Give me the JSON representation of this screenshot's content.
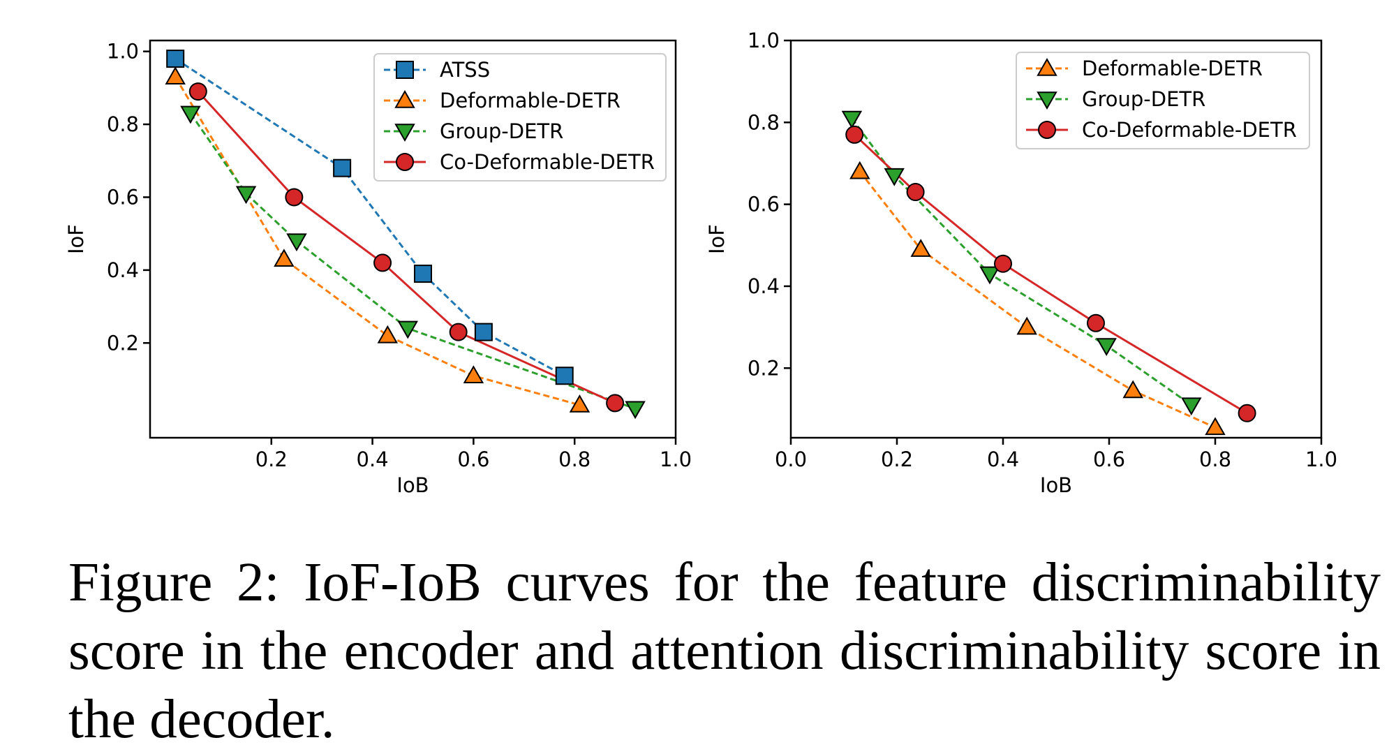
{
  "colors": {
    "ATSS": "#1f77b4",
    "Deformable-DETR": "#ff7f0e",
    "Group-DETR": "#2ca02c",
    "Co-Deformable-DETR": "#d62728"
  },
  "chart_data": [
    {
      "type": "line",
      "xlabel": "IoB",
      "ylabel": "IoF",
      "xlim": [
        -0.04,
        1.0
      ],
      "ylim": [
        -0.06,
        1.03
      ],
      "xticks": [
        "0.2",
        "0.4",
        "0.6",
        "0.8",
        "1.0"
      ],
      "yticks": [
        "0.2",
        "0.4",
        "0.6",
        "0.8",
        "1.0"
      ],
      "grid": false,
      "legend": "top-right",
      "series": [
        {
          "name": "ATSS",
          "marker": "square",
          "linestyle": "dashed",
          "x": [
            0.01,
            0.34,
            0.5,
            0.62,
            0.78
          ],
          "y": [
            0.98,
            0.68,
            0.39,
            0.23,
            0.11
          ]
        },
        {
          "name": "Deformable-DETR",
          "marker": "triangle-up",
          "linestyle": "dashed",
          "x": [
            0.01,
            0.225,
            0.43,
            0.6,
            0.81
          ],
          "y": [
            0.93,
            0.43,
            0.22,
            0.11,
            0.03
          ]
        },
        {
          "name": "Group-DETR",
          "marker": "triangle-down",
          "linestyle": "dashed",
          "x": [
            0.04,
            0.15,
            0.25,
            0.47,
            0.92
          ],
          "y": [
            0.83,
            0.61,
            0.48,
            0.24,
            0.02
          ]
        },
        {
          "name": "Co-Deformable-DETR",
          "marker": "circle",
          "linestyle": "solid",
          "x": [
            0.055,
            0.245,
            0.42,
            0.57,
            0.88
          ],
          "y": [
            0.89,
            0.6,
            0.42,
            0.23,
            0.035
          ]
        }
      ]
    },
    {
      "type": "line",
      "xlabel": "IoB",
      "ylabel": "IoF",
      "xlim": [
        0.0,
        1.0
      ],
      "ylim": [
        0.03,
        1.0
      ],
      "xticks": [
        "0.0",
        "0.2",
        "0.4",
        "0.6",
        "0.8",
        "1.0"
      ],
      "yticks": [
        "0.2",
        "0.4",
        "0.6",
        "0.8",
        "1.0"
      ],
      "grid": false,
      "legend": "top-right",
      "series": [
        {
          "name": "Deformable-DETR",
          "marker": "triangle-up",
          "linestyle": "dashed",
          "x": [
            0.13,
            0.245,
            0.445,
            0.645,
            0.8
          ],
          "y": [
            0.68,
            0.49,
            0.3,
            0.145,
            0.055
          ]
        },
        {
          "name": "Group-DETR",
          "marker": "triangle-down",
          "linestyle": "dashed",
          "x": [
            0.115,
            0.195,
            0.375,
            0.595,
            0.755
          ],
          "y": [
            0.81,
            0.67,
            0.43,
            0.255,
            0.11
          ]
        },
        {
          "name": "Co-Deformable-DETR",
          "marker": "circle",
          "linestyle": "solid",
          "x": [
            0.12,
            0.235,
            0.4,
            0.575,
            0.86
          ],
          "y": [
            0.77,
            0.63,
            0.455,
            0.31,
            0.09
          ]
        }
      ]
    }
  ],
  "caption": "Figure 2:  IoF-IoB curves for the feature discriminability score in the encoder and attention discriminability score in the decoder."
}
